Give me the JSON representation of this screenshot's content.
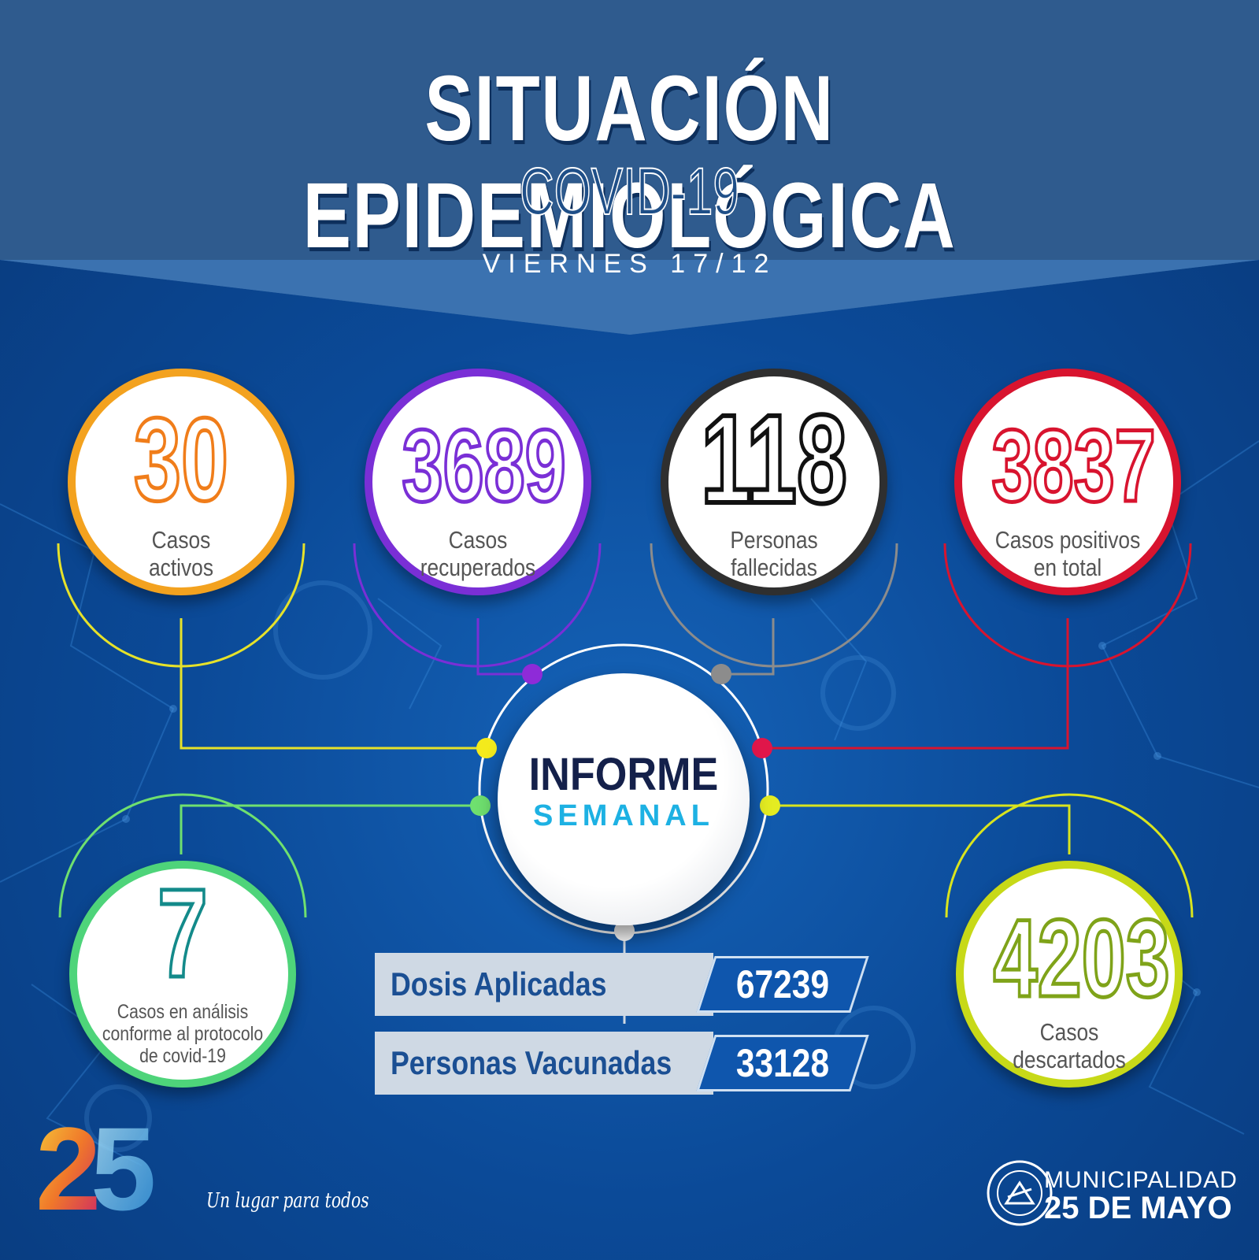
{
  "header": {
    "title": "SITUACIÓN EPIDEMIOLÓGICA",
    "subtitle": "COVID-19",
    "date": "VIERNES 17/12"
  },
  "stats": {
    "active": {
      "value": "30",
      "label_line1": "Casos",
      "label_line2": "activos",
      "color": "#f07d1a"
    },
    "recovered": {
      "value": "3689",
      "label_line1": "Casos",
      "label_line2": "recuperados",
      "color": "#7a2fd6"
    },
    "deceased": {
      "value": "118",
      "label_line1": "Personas",
      "label_line2": "fallecidas",
      "color": "#111111"
    },
    "total_positive": {
      "value": "3837",
      "label_line1": "Casos positivos",
      "label_line2": "en total",
      "color": "#d8142f"
    },
    "in_analysis": {
      "value": "7",
      "label_line1": "Casos en análisis",
      "label_line2": "conforme al protocolo",
      "label_line3": "de covid-19",
      "color": "#138a8a"
    },
    "discarded": {
      "value": "4203",
      "label_line1": "Casos",
      "label_line2": "descartados",
      "color": "#7fa319"
    }
  },
  "hub": {
    "line1": "INFORME",
    "line2": "SEMANAL"
  },
  "vaccination": {
    "doses_label": "Dosis Aplicadas",
    "doses_value": "67239",
    "people_label": "Personas Vacunadas",
    "people_value": "33128"
  },
  "footer": {
    "logo_number": "25",
    "slogan": "Un lugar para todos",
    "municipality_line1": "MUNICIPALIDAD",
    "municipality_line2": "25 DE MAYO"
  }
}
